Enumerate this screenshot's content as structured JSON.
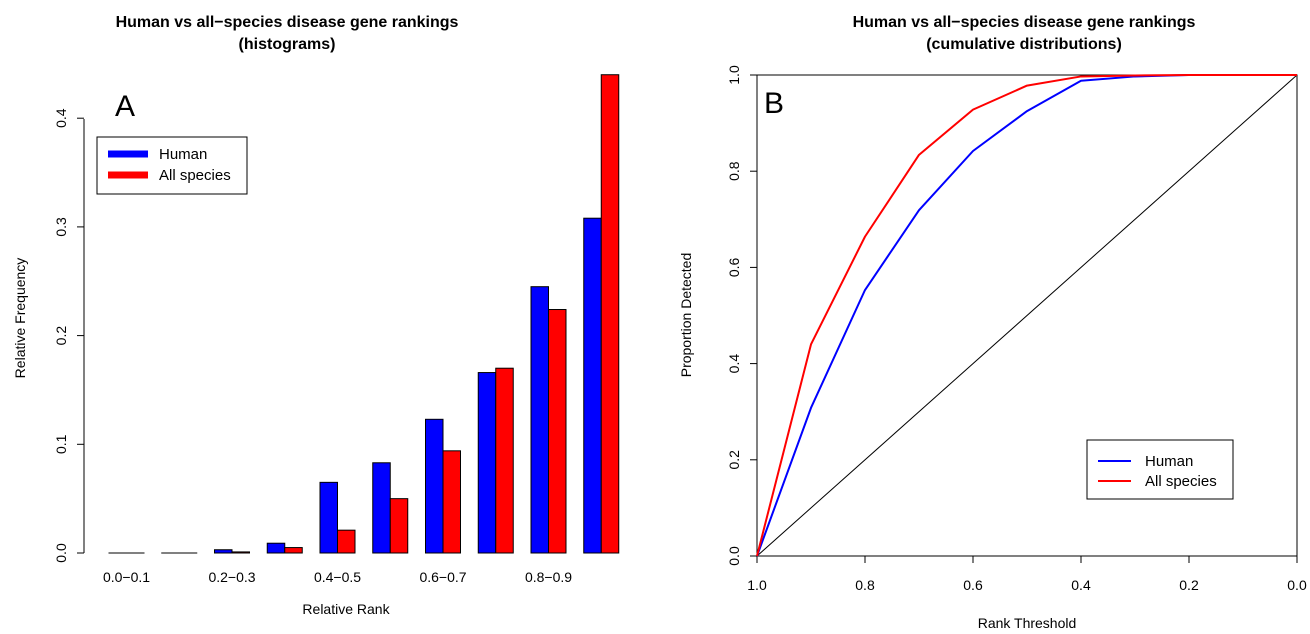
{
  "chart_data": [
    {
      "type": "bar",
      "panel_letter": "A",
      "title": "Human vs all−species disease gene rankings",
      "subtitle": "(histograms)",
      "xlabel": "Relative Rank",
      "ylabel": "Relative Frequency",
      "ylim": [
        0,
        0.45
      ],
      "yticks": [
        "0.0",
        "0.1",
        "0.2",
        "0.3",
        "0.4"
      ],
      "categories": [
        "0.0−0.1",
        "0.1−0.2",
        "0.2−0.3",
        "0.3−0.4",
        "0.4−0.5",
        "0.5−0.6",
        "0.6−0.7",
        "0.7−0.8",
        "0.8−0.9",
        "0.9−1.0"
      ],
      "shown_tick_labels": [
        "0.0−0.1",
        "",
        "0.2−0.3",
        "",
        "0.4−0.5",
        "",
        "0.6−0.7",
        "",
        "0.8−0.9",
        ""
      ],
      "series": [
        {
          "name": "Human",
          "color": "#0000ff",
          "values": [
            0.0,
            0.0,
            0.003,
            0.009,
            0.065,
            0.083,
            0.123,
            0.166,
            0.245,
            0.308
          ]
        },
        {
          "name": "All species",
          "color": "#ff0000",
          "values": [
            0.0,
            0.0,
            0.001,
            0.005,
            0.021,
            0.05,
            0.094,
            0.17,
            0.224,
            0.44
          ]
        }
      ],
      "legend": {
        "position": "top-left",
        "entries": [
          "Human",
          "All species"
        ]
      },
      "grid": false
    },
    {
      "type": "line",
      "panel_letter": "B",
      "title": "Human vs all−species disease gene rankings",
      "subtitle": "(cumulative distributions)",
      "xlabel": "Rank Threshold",
      "ylabel": "Proportion Detected",
      "xlim": [
        1.0,
        0.0
      ],
      "ylim": [
        0,
        1
      ],
      "xticks": [
        "1.0",
        "0.8",
        "0.6",
        "0.4",
        "0.2",
        "0.0"
      ],
      "yticks": [
        "0.0",
        "0.2",
        "0.4",
        "0.6",
        "0.8",
        "1.0"
      ],
      "x": [
        1.0,
        0.9,
        0.8,
        0.7,
        0.6,
        0.5,
        0.4,
        0.3,
        0.2,
        0.1,
        0.0
      ],
      "series": [
        {
          "name": "Human",
          "color": "#0000ff",
          "values": [
            0.0,
            0.308,
            0.553,
            0.719,
            0.842,
            0.925,
            0.988,
            0.997,
            1.0,
            1.0,
            1.0
          ]
        },
        {
          "name": "All species",
          "color": "#ff0000",
          "values": [
            0.0,
            0.44,
            0.664,
            0.834,
            0.928,
            0.978,
            0.997,
            0.999,
            1.0,
            1.0,
            1.0
          ]
        }
      ],
      "reference_line": {
        "from": [
          1.0,
          0.0
        ],
        "to": [
          0.0,
          1.0
        ],
        "color": "#000000"
      },
      "legend": {
        "position": "bottom-right",
        "entries": [
          "Human",
          "All species"
        ]
      },
      "grid": false
    }
  ]
}
